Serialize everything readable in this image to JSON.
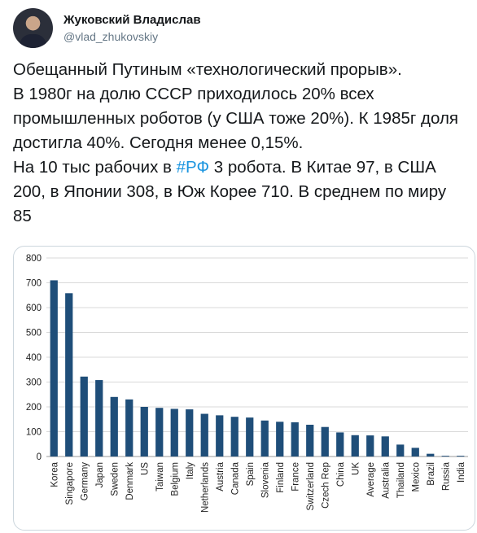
{
  "author": {
    "name": "Жуковский Владислав",
    "handle": "@vlad_zhukovskiy"
  },
  "tweet": {
    "line1": "Обещанный Путиным «технологический прорыв».",
    "line2": "В 1980г на долю СССР приходилось 20% всех промышленных роботов (у США тоже 20%). К 1985г доля достигла 40%. Сегодня менее 0,15%.",
    "line3_before": "На 10 тыс рабочих в ",
    "hashtag": "#РФ",
    "line3_after": " 3 робота. В Китае 97, в США 200, в Японии 308, в Юж Корее 710. В среднем по миру 85"
  },
  "colors": {
    "bar": "#1f4e79",
    "grid": "#d9d9d9",
    "link": "#1b95e0"
  },
  "chart_data": {
    "type": "bar",
    "categories": [
      "Korea",
      "Singapore",
      "Germany",
      "Japan",
      "Sweden",
      "Denmark",
      "US",
      "Taiwan",
      "Belgium",
      "Italy",
      "Netherlands",
      "Austria",
      "Canada",
      "Spain",
      "Slovenia",
      "Finland",
      "France",
      "Switzerland",
      "Czech Rep",
      "China",
      "UK",
      "Average",
      "Australia",
      "Thailand",
      "Mexico",
      "Brazil",
      "Russia",
      "India"
    ],
    "values": [
      710,
      658,
      322,
      308,
      240,
      230,
      200,
      196,
      192,
      190,
      172,
      166,
      160,
      157,
      145,
      140,
      138,
      128,
      119,
      97,
      86,
      85,
      81,
      48,
      35,
      11,
      3,
      3
    ],
    "yticks": [
      "0",
      "100",
      "200",
      "300",
      "400",
      "500",
      "600",
      "700",
      "800"
    ],
    "ylim": [
      0,
      800
    ],
    "grid": true,
    "title": "",
    "xlabel": "",
    "ylabel": ""
  }
}
